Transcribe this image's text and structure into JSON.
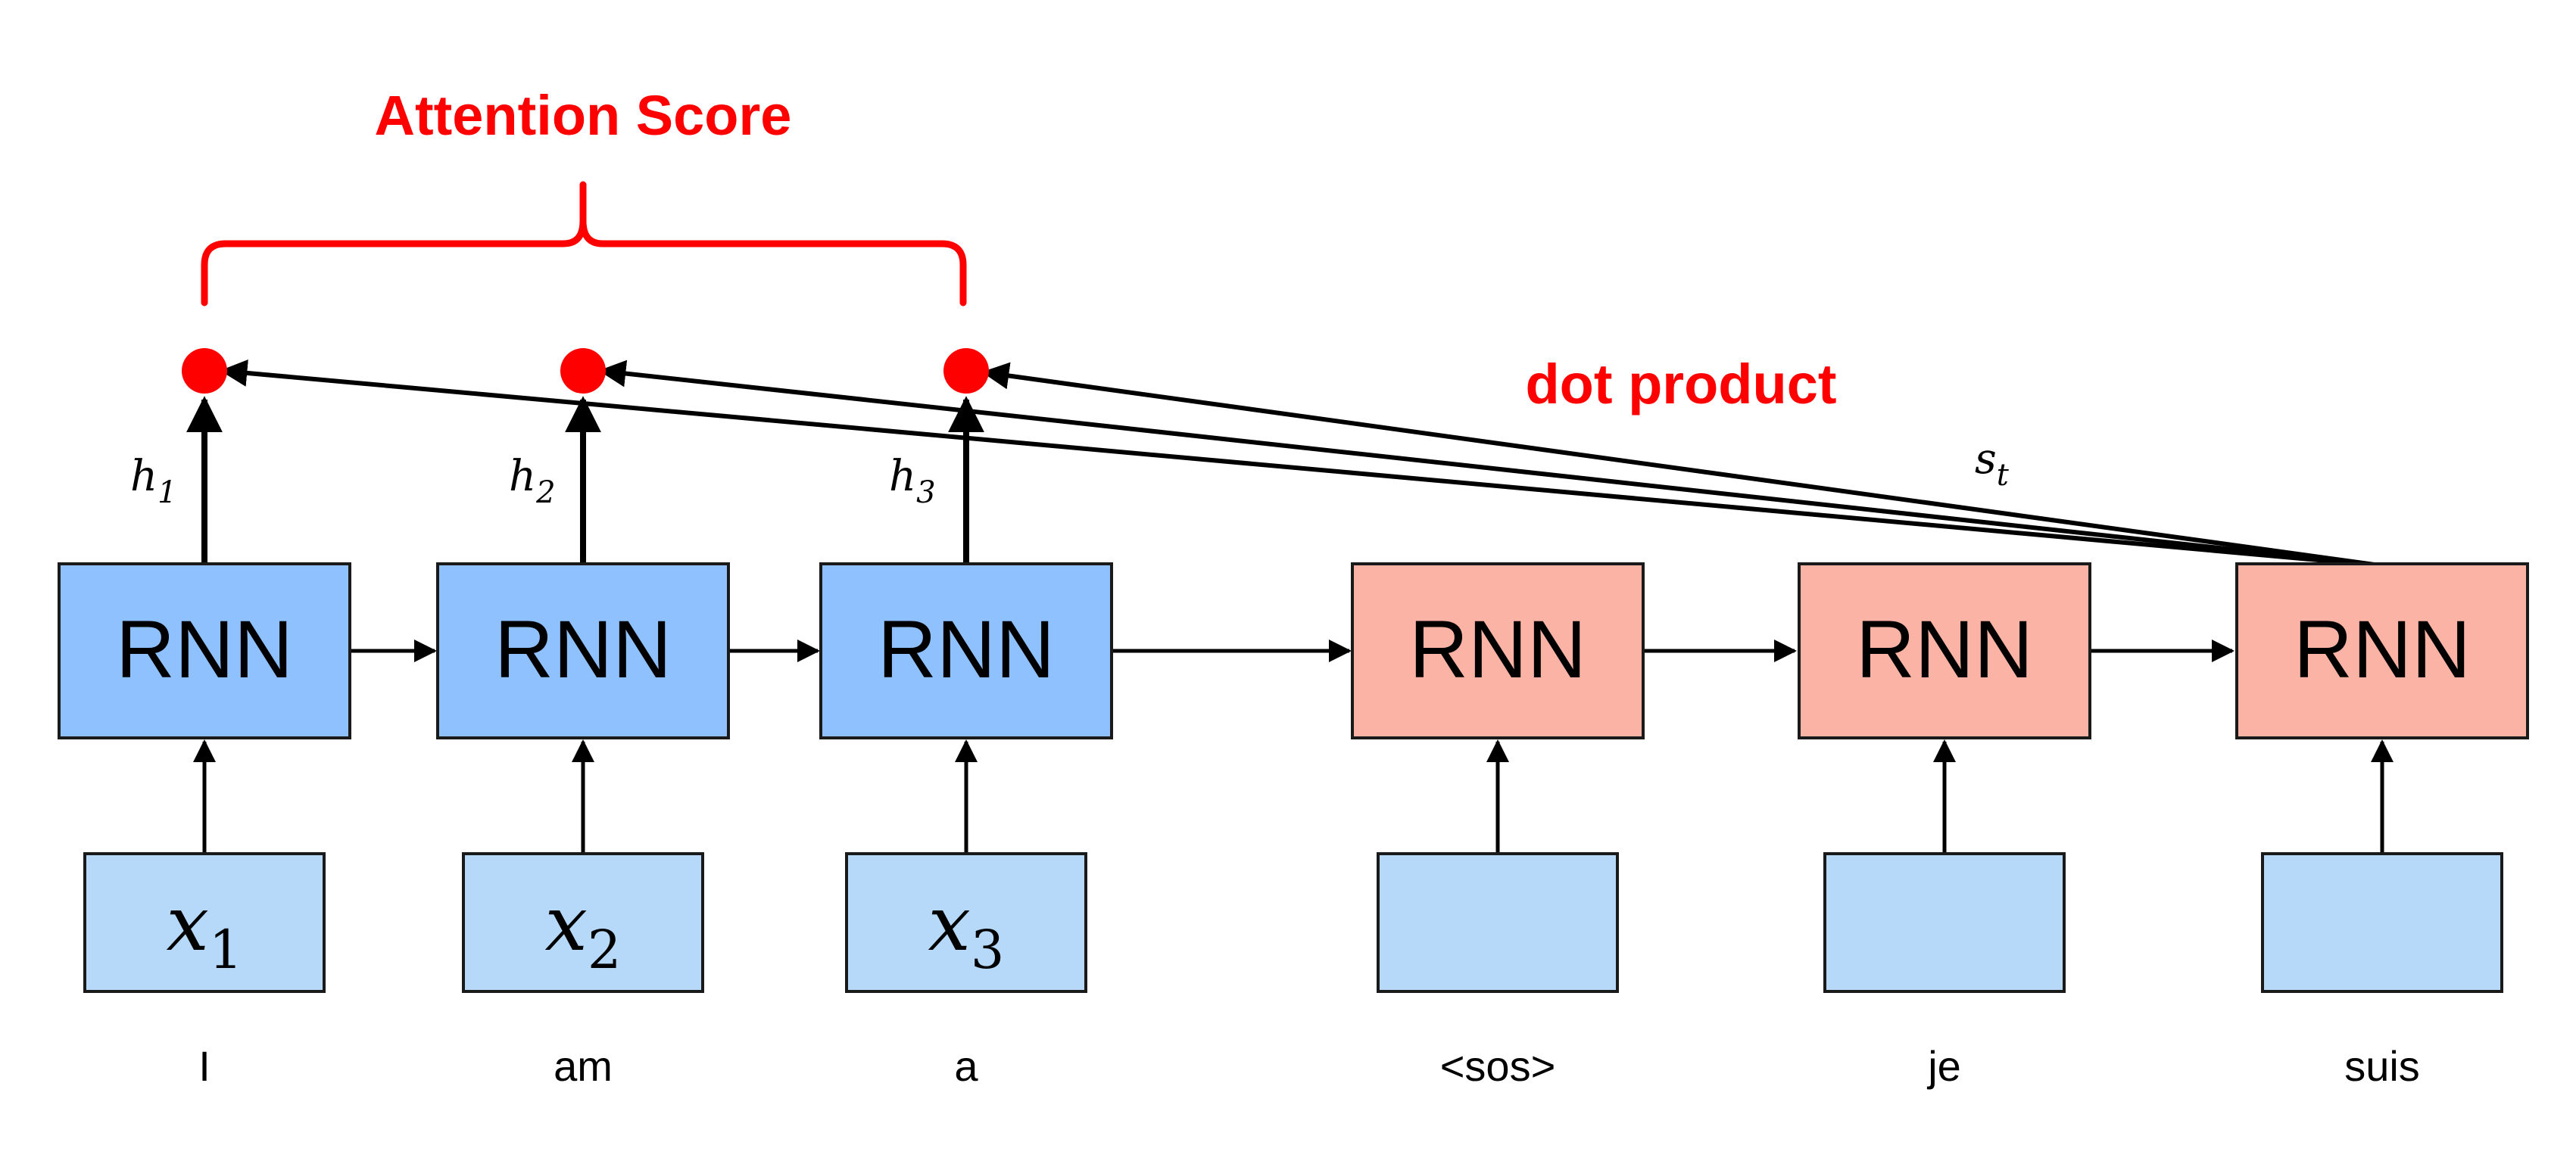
{
  "title": "Attention Score",
  "dot_product_label": "dot product",
  "colors": {
    "accent": "#ff0000",
    "encoder_fill": "#8fc1ff",
    "decoder_fill": "#fbb3a5",
    "input_fill": "#b6d9fa",
    "stroke": "#000000"
  },
  "encoder": {
    "cells": [
      {
        "label": "RNN",
        "hidden": {
          "base": "h",
          "sub": "1"
        },
        "input": {
          "base": "x",
          "sub": "1"
        },
        "word": "I"
      },
      {
        "label": "RNN",
        "hidden": {
          "base": "h",
          "sub": "2"
        },
        "input": {
          "base": "x",
          "sub": "2"
        },
        "word": "am"
      },
      {
        "label": "RNN",
        "hidden": {
          "base": "h",
          "sub": "3"
        },
        "input": {
          "base": "x",
          "sub": "3"
        },
        "word": "a"
      }
    ]
  },
  "decoder": {
    "cells": [
      {
        "label": "RNN",
        "word": "<sos>"
      },
      {
        "label": "RNN",
        "word": "je"
      },
      {
        "label": "RNN",
        "word": "suis"
      }
    ],
    "state": {
      "base": "s",
      "sub": "t"
    }
  }
}
